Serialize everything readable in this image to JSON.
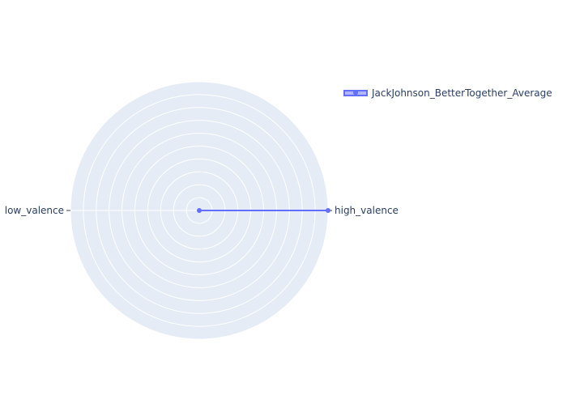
{
  "chart_data": {
    "type": "radar",
    "categories": [
      "high_valence",
      "low_valence"
    ],
    "series": [
      {
        "name": "JackJohnson_BetterTogether_Average",
        "values": [
          1.0,
          0.0
        ],
        "fill": "toself"
      }
    ],
    "radial_range": [
      0,
      1
    ],
    "radial_gridlines": 10,
    "grid": true,
    "legend_position": "top-right",
    "colors": {
      "series": "#636efa",
      "polar_bg": "#e5ecf6",
      "grid": "#ffffff",
      "text": "#2a3f5f"
    }
  }
}
